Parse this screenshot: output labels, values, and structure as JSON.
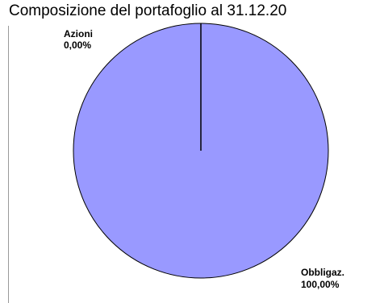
{
  "chart_data": {
    "type": "pie",
    "title": "Composizione del portafoglio al 31.12.20",
    "slices": [
      {
        "label": "Azioni",
        "value_label": "0,00%",
        "value": 0.0,
        "color": "#9999ff"
      },
      {
        "label": "Obbligaz.",
        "value_label": "100,00%",
        "value": 100.0,
        "color": "#9999ff"
      }
    ],
    "legend": "none"
  }
}
